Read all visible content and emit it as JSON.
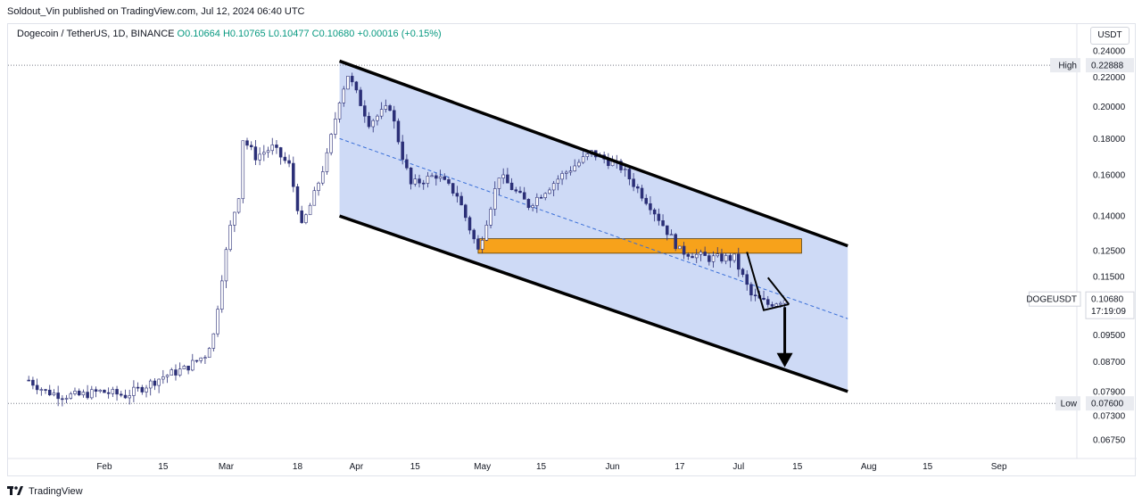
{
  "header": {
    "published": "Soldout_Vin published on TradingView.com, Jul 12, 2024 06:40 UTC"
  },
  "legend": {
    "symbol": "Dogecoin / TetherUS, 1D, BINANCE",
    "open": "O0.10664",
    "high": "H0.10765",
    "low": "L0.10477",
    "close": "C0.10680",
    "change": "+0.00016 (+0.15%)"
  },
  "toolbar": {
    "currency": "USDT"
  },
  "price_tags": {
    "high_label": "High",
    "high_value": "0.22888",
    "low_label": "Low",
    "low_value": "0.07600",
    "symbol_label": "DOGEUSDT",
    "last_value": "0.10680",
    "countdown": "17:19:09"
  },
  "footer": {
    "brand": "TradingView"
  },
  "colors": {
    "up": "#089981",
    "candle_body": "#ffffff",
    "candle_border": "#2b2f77",
    "channel_fill": "#c5d3f5",
    "support_zone": "#f7a21b",
    "dashed_mid": "#3a6fd8"
  },
  "chart_data": {
    "type": "candlestick",
    "title": "",
    "y_scale": "log",
    "ylim": [
      0.0635,
      0.2455
    ],
    "y_ticks": [
      "0.24000",
      "0.22000",
      "0.20000",
      "0.18000",
      "0.16000",
      "0.14000",
      "0.12500",
      "0.11500",
      "0.10680",
      "0.09500",
      "0.08700",
      "0.07900",
      "0.07300",
      "0.06750"
    ],
    "x_ticks": [
      "Feb",
      "15",
      "Mar",
      "18",
      "Apr",
      "15",
      "May",
      "15",
      "Jun",
      "17",
      "Jul",
      "15",
      "Aug",
      "15",
      "Sep"
    ],
    "close_path": [
      [
        "2024-01-14",
        0.082
      ],
      [
        "2024-01-18",
        0.079
      ],
      [
        "2024-01-22",
        0.078
      ],
      [
        "2024-01-26",
        0.078
      ],
      [
        "2024-01-31",
        0.079
      ],
      [
        "2024-02-06",
        0.078
      ],
      [
        "2024-02-10",
        0.08
      ],
      [
        "2024-02-15",
        0.083
      ],
      [
        "2024-02-20",
        0.085
      ],
      [
        "2024-02-25",
        0.089
      ],
      [
        "2024-02-27",
        0.095
      ],
      [
        "2024-02-29",
        0.115
      ],
      [
        "2024-03-02",
        0.135
      ],
      [
        "2024-03-04",
        0.15
      ],
      [
        "2024-03-05",
        0.18
      ],
      [
        "2024-03-08",
        0.17
      ],
      [
        "2024-03-12",
        0.175
      ],
      [
        "2024-03-16",
        0.165
      ],
      [
        "2024-03-19",
        0.135
      ],
      [
        "2024-03-22",
        0.15
      ],
      [
        "2024-03-25",
        0.17
      ],
      [
        "2024-03-28",
        0.205
      ],
      [
        "2024-03-30",
        0.222
      ],
      [
        "2024-04-04",
        0.19
      ],
      [
        "2024-04-09",
        0.2
      ],
      [
        "2024-04-12",
        0.17
      ],
      [
        "2024-04-14",
        0.155
      ],
      [
        "2024-04-20",
        0.16
      ],
      [
        "2024-04-25",
        0.15
      ],
      [
        "2024-04-30",
        0.125
      ],
      [
        "2024-05-05",
        0.16
      ],
      [
        "2024-05-12",
        0.145
      ],
      [
        "2024-05-20",
        0.16
      ],
      [
        "2024-05-27",
        0.172
      ],
      [
        "2024-06-03",
        0.164
      ],
      [
        "2024-06-10",
        0.145
      ],
      [
        "2024-06-17",
        0.125
      ],
      [
        "2024-06-24",
        0.122
      ],
      [
        "2024-06-30",
        0.122
      ],
      [
        "2024-07-04",
        0.108
      ],
      [
        "2024-07-08",
        0.105
      ],
      [
        "2024-07-12",
        0.1068
      ]
    ],
    "channel_upper": [
      [
        "2024-03-28",
        0.232
      ],
      [
        "2024-07-27",
        0.127
      ]
    ],
    "channel_lower": [
      [
        "2024-03-28",
        0.14
      ],
      [
        "2024-07-27",
        0.079
      ]
    ],
    "support_zone": {
      "from": "2024-04-30",
      "to": "2024-07-16",
      "low": 0.124,
      "high": 0.13
    },
    "high": 0.22888,
    "low": 0.076,
    "last": 0.1068
  }
}
